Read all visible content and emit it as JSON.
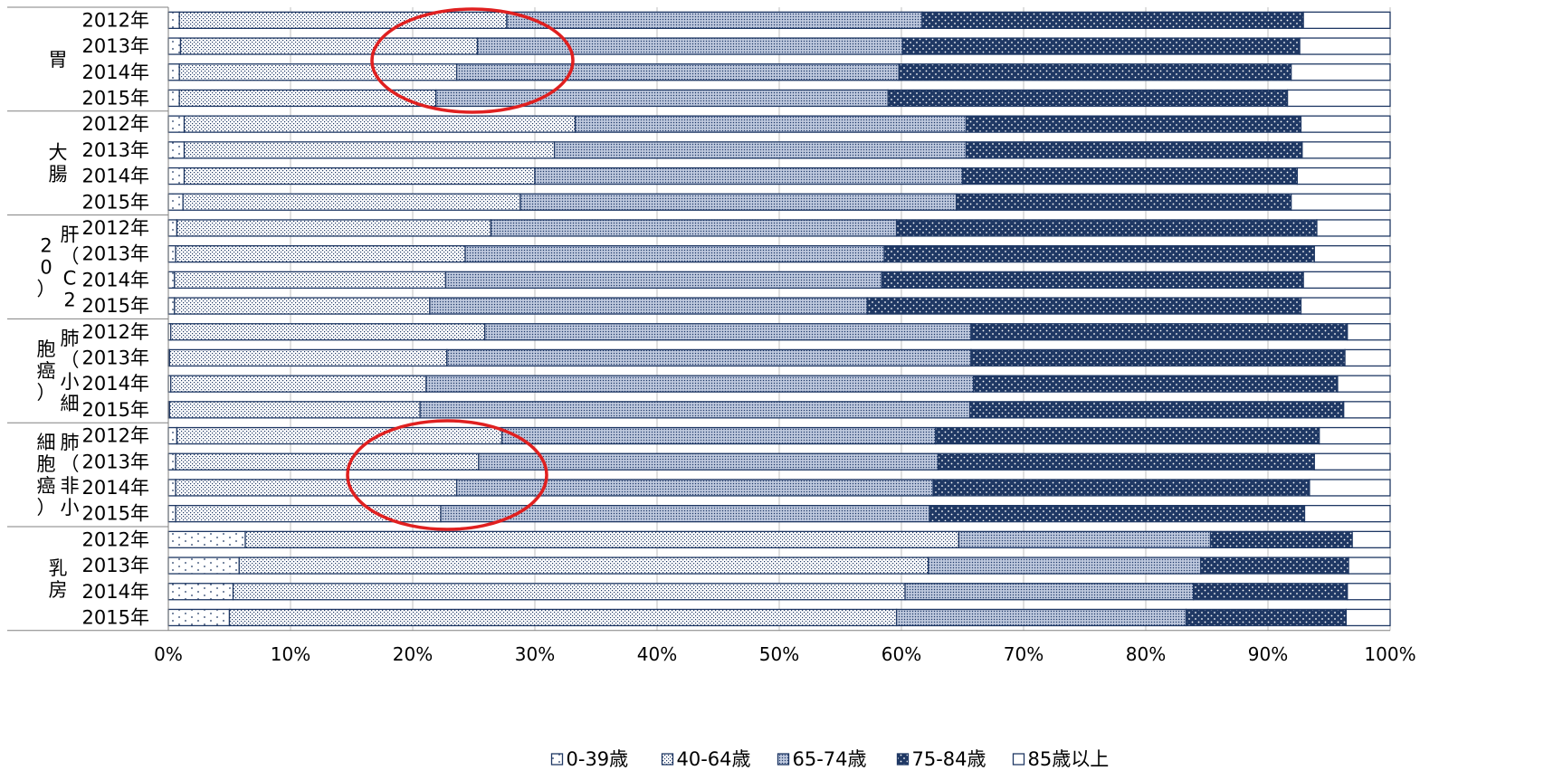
{
  "chart_data": {
    "type": "bar",
    "orientation": "horizontal",
    "stacked": true,
    "percent": true,
    "xlim": [
      0,
      100
    ],
    "x_ticks": [
      "0%",
      "10%",
      "20%",
      "30%",
      "40%",
      "50%",
      "60%",
      "70%",
      "80%",
      "90%",
      "100%"
    ],
    "grid": true,
    "legend_position": "bottom",
    "series_names": [
      "0-39歳",
      "40-64歳",
      "65-74歳",
      "75-84歳",
      "85歳以上"
    ],
    "groups": [
      {
        "name": "胃",
        "rows": [
          {
            "year": "2012年",
            "values": [
              0.9,
              26.8,
              34.0,
              31.2,
              7.1
            ]
          },
          {
            "year": "2013年",
            "values": [
              1.0,
              24.3,
              34.8,
              32.5,
              7.4
            ]
          },
          {
            "year": "2014年",
            "values": [
              0.9,
              22.7,
              36.2,
              32.1,
              8.1
            ]
          },
          {
            "year": "2015年",
            "values": [
              0.9,
              21.0,
              37.0,
              32.7,
              8.4
            ]
          }
        ]
      },
      {
        "name": "大腸",
        "rows": [
          {
            "year": "2012年",
            "values": [
              1.3,
              32.0,
              32.0,
              27.4,
              7.3
            ]
          },
          {
            "year": "2013年",
            "values": [
              1.3,
              30.3,
              33.7,
              27.5,
              7.2
            ]
          },
          {
            "year": "2014年",
            "values": [
              1.3,
              28.7,
              35.0,
              27.4,
              7.6
            ]
          },
          {
            "year": "2015年",
            "values": [
              1.2,
              27.6,
              35.7,
              27.4,
              8.1
            ]
          }
        ]
      },
      {
        "name": "肝（C220）",
        "rows": [
          {
            "year": "2012年",
            "values": [
              0.7,
              25.7,
              33.2,
              34.4,
              6.0
            ]
          },
          {
            "year": "2013年",
            "values": [
              0.6,
              23.7,
              34.3,
              35.2,
              6.2
            ]
          },
          {
            "year": "2014年",
            "values": [
              0.5,
              22.2,
              35.7,
              34.5,
              7.1
            ]
          },
          {
            "year": "2015年",
            "values": [
              0.5,
              20.9,
              35.8,
              35.5,
              7.3
            ]
          }
        ]
      },
      {
        "name": "肺（小細胞癌）",
        "rows": [
          {
            "year": "2012年",
            "values": [
              0.2,
              25.7,
              39.8,
              30.8,
              3.5
            ]
          },
          {
            "year": "2013年",
            "values": [
              0.1,
              22.7,
              42.9,
              30.6,
              3.7
            ]
          },
          {
            "year": "2014年",
            "values": [
              0.2,
              20.9,
              44.8,
              29.8,
              4.3
            ]
          },
          {
            "year": "2015年",
            "values": [
              0.1,
              20.5,
              45.0,
              30.6,
              3.8
            ]
          }
        ]
      },
      {
        "name": "肺（非小細胞癌）",
        "rows": [
          {
            "year": "2012年",
            "values": [
              0.7,
              26.6,
              35.5,
              31.4,
              5.8
            ]
          },
          {
            "year": "2013年",
            "values": [
              0.6,
              24.8,
              37.6,
              30.8,
              6.2
            ]
          },
          {
            "year": "2014年",
            "values": [
              0.6,
              23.0,
              39.0,
              30.8,
              6.6
            ]
          },
          {
            "year": "2015年",
            "values": [
              0.6,
              21.7,
              40.0,
              30.7,
              7.0
            ]
          }
        ]
      },
      {
        "name": "乳房",
        "rows": [
          {
            "year": "2012年",
            "values": [
              6.3,
              58.4,
              20.6,
              11.6,
              3.1
            ]
          },
          {
            "year": "2013年",
            "values": [
              5.8,
              56.4,
              22.3,
              12.1,
              3.4
            ]
          },
          {
            "year": "2014年",
            "values": [
              5.3,
              55.0,
              23.6,
              12.6,
              3.5
            ]
          },
          {
            "year": "2015年",
            "values": [
              5.0,
              54.6,
              23.7,
              13.1,
              3.6
            ]
          }
        ]
      }
    ]
  },
  "colors": {
    "navy": "#1f3864",
    "light_blue": "#c5d0e6",
    "gray_blue": "#8d9fc0",
    "annotation": "#e02020",
    "gridline": "#bfbfbf"
  }
}
